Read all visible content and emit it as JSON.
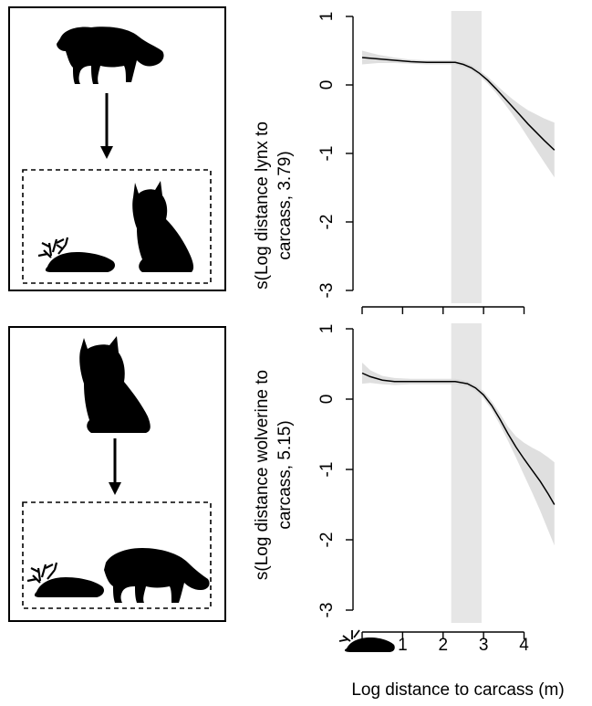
{
  "figure": {
    "xlabel": "Log distance to carcass (m)",
    "x_ticks": [
      "1",
      "2",
      "3",
      "4"
    ]
  },
  "chart_data": [
    {
      "type": "line",
      "panel": "top",
      "ylabel_line1": "s(Log distance lynx to",
      "ylabel_line2": "carcass, 3.79)",
      "xlabel": "Log distance to carcass (m)",
      "xlim": [
        0,
        4.8
      ],
      "ylim": [
        -3,
        1
      ],
      "y_ticks": [
        "1",
        "0",
        "-1",
        "-2",
        "-3"
      ],
      "highlight_band_x": [
        2.2,
        2.95
      ],
      "series": [
        {
          "x": [
            0,
            0.4,
            0.8,
            1.2,
            1.6,
            2.0,
            2.3,
            2.5,
            2.7,
            2.9,
            3.1,
            3.3,
            3.5,
            3.7,
            3.9,
            4.1,
            4.3,
            4.5,
            4.75
          ],
          "y": [
            0.4,
            0.38,
            0.36,
            0.34,
            0.33,
            0.33,
            0.33,
            0.3,
            0.25,
            0.17,
            0.07,
            -0.05,
            -0.18,
            -0.31,
            -0.44,
            -0.57,
            -0.69,
            -0.81,
            -0.95
          ],
          "lower": [
            0.3,
            0.32,
            0.32,
            0.31,
            0.3,
            0.3,
            0.3,
            0.26,
            0.21,
            0.13,
            0.02,
            -0.11,
            -0.26,
            -0.42,
            -0.59,
            -0.77,
            -0.95,
            -1.13,
            -1.35
          ],
          "upper": [
            0.5,
            0.44,
            0.4,
            0.37,
            0.36,
            0.36,
            0.36,
            0.34,
            0.29,
            0.21,
            0.12,
            0.01,
            -0.1,
            -0.2,
            -0.29,
            -0.37,
            -0.43,
            -0.49,
            -0.55
          ]
        }
      ]
    },
    {
      "type": "line",
      "panel": "bottom",
      "ylabel_line1": "s(Log distance wolverine to",
      "ylabel_line2": "carcass, 5.15)",
      "xlabel": "Log distance to carcass (m)",
      "xlim": [
        0,
        4.8
      ],
      "ylim": [
        -3,
        1
      ],
      "y_ticks": [
        "1",
        "0",
        "-1",
        "-2",
        "-3"
      ],
      "highlight_band_x": [
        2.2,
        2.95
      ],
      "series": [
        {
          "x": [
            0,
            0.2,
            0.5,
            0.8,
            1.2,
            1.6,
            2.0,
            2.3,
            2.6,
            2.8,
            3.0,
            3.2,
            3.4,
            3.6,
            3.8,
            4.0,
            4.2,
            4.4,
            4.6,
            4.75
          ],
          "y": [
            0.37,
            0.32,
            0.27,
            0.25,
            0.25,
            0.25,
            0.25,
            0.25,
            0.22,
            0.16,
            0.06,
            -0.09,
            -0.28,
            -0.49,
            -0.68,
            -0.85,
            -1.01,
            -1.17,
            -1.35,
            -1.5
          ],
          "lower": [
            0.22,
            0.23,
            0.21,
            0.2,
            0.21,
            0.21,
            0.21,
            0.21,
            0.18,
            0.12,
            0.01,
            -0.15,
            -0.36,
            -0.59,
            -0.83,
            -1.08,
            -1.33,
            -1.59,
            -1.87,
            -2.08
          ],
          "upper": [
            0.52,
            0.41,
            0.33,
            0.3,
            0.29,
            0.29,
            0.29,
            0.29,
            0.26,
            0.2,
            0.11,
            -0.03,
            -0.2,
            -0.39,
            -0.53,
            -0.62,
            -0.69,
            -0.75,
            -0.83,
            -0.9
          ]
        }
      ]
    }
  ]
}
